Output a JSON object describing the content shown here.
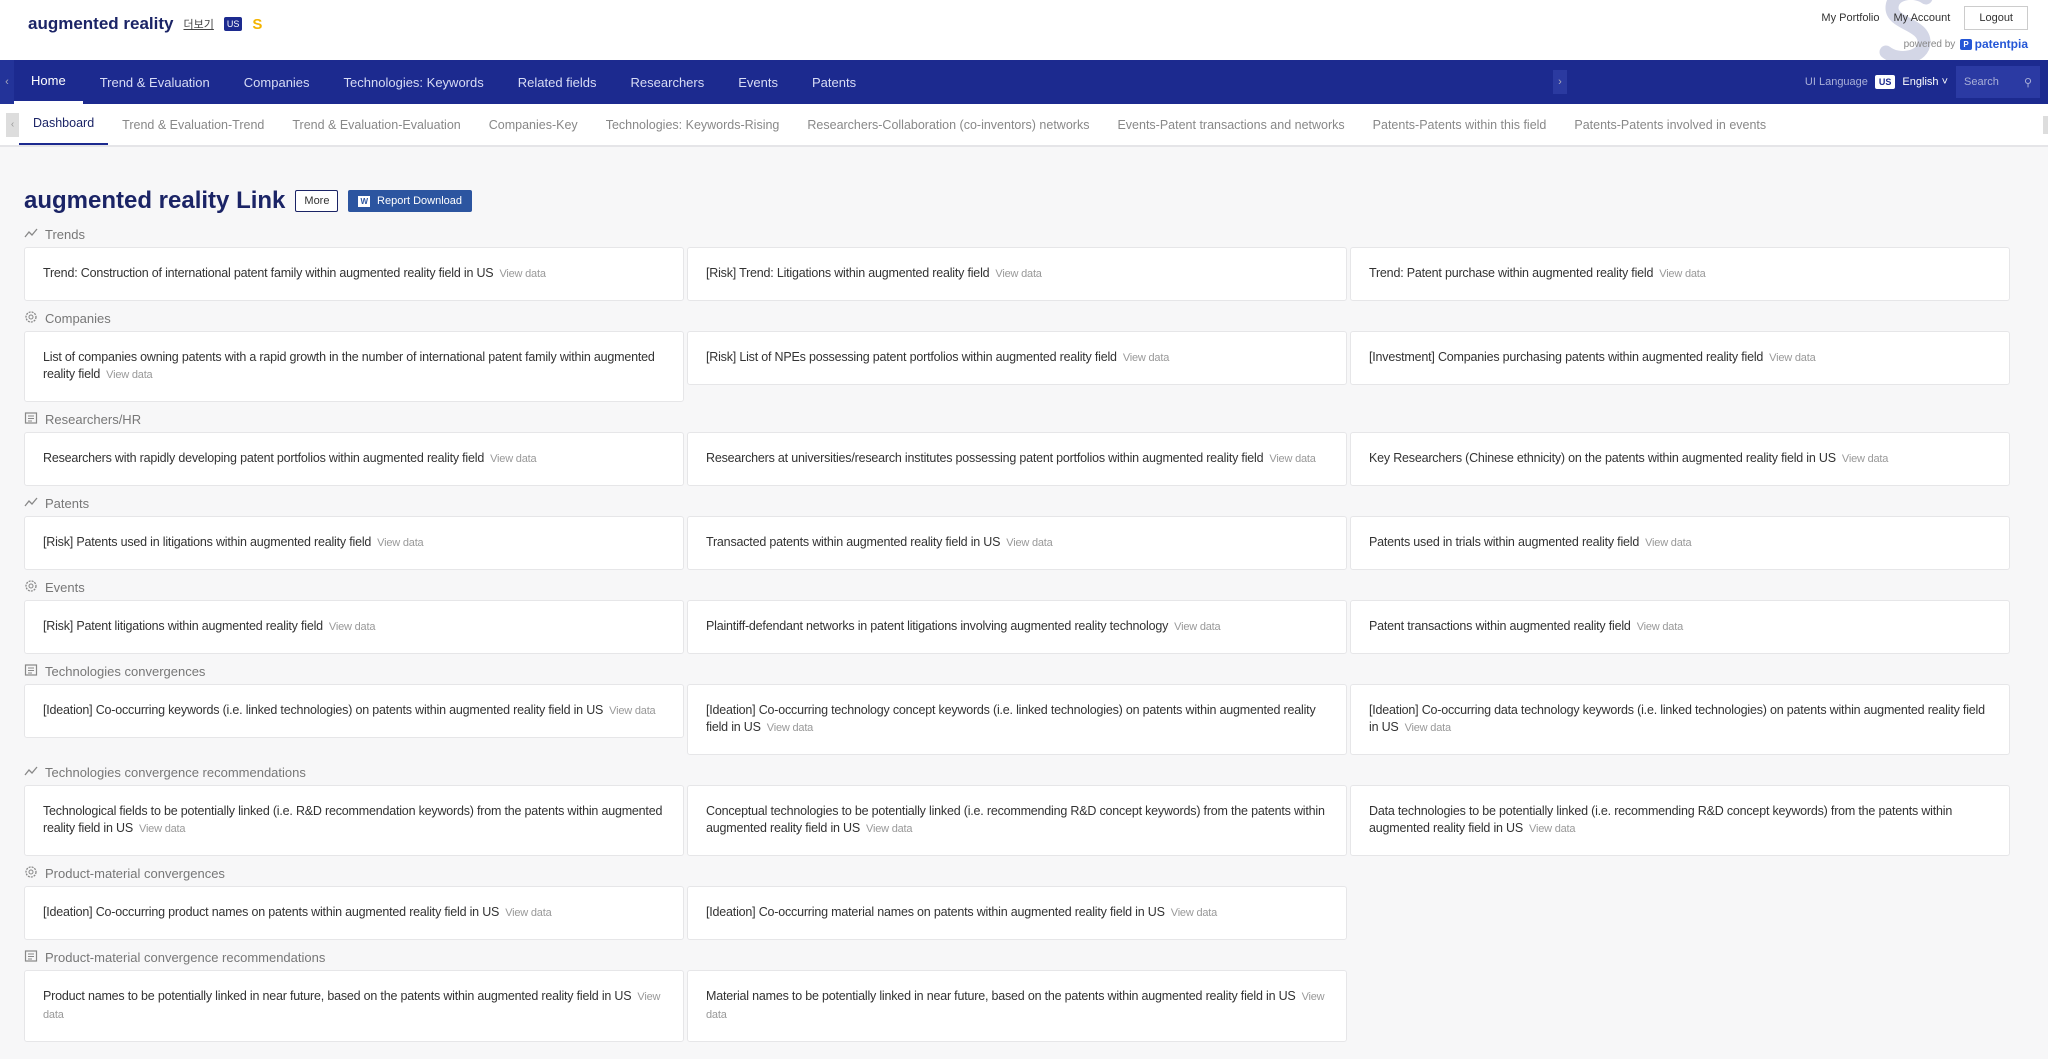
{
  "header": {
    "title": "augmented reality",
    "more_korean": "더보기",
    "country": "US",
    "s_badge": "S",
    "my_portfolio": "My Portfolio",
    "my_account": "My Account",
    "logout": "Logout",
    "powered_by": "powered by",
    "brand": "patentpia",
    "brand_icon": "P"
  },
  "nav": {
    "items": [
      "Home",
      "Trend & Evaluation",
      "Companies",
      "Technologies: Keywords",
      "Related fields",
      "Researchers",
      "Events",
      "Patents"
    ],
    "ui_language_label": "UI Language",
    "lang_country": "US",
    "language": "English",
    "search_placeholder": "Search"
  },
  "subnav": {
    "items": [
      "Dashboard",
      "Trend & Evaluation-Trend",
      "Trend & Evaluation-Evaluation",
      "Companies-Key",
      "Technologies: Keywords-Rising",
      "Researchers-Collaboration (co-inventors) networks",
      "Events-Patent transactions and networks",
      "Patents-Patents within this field",
      "Patents-Patents involved in events"
    ]
  },
  "page": {
    "title": "augmented reality Link",
    "more": "More",
    "report_download": "Report Download",
    "view_data": "View data"
  },
  "colors": {
    "nav_bg": "#1c2a8f",
    "title": "#1b2466",
    "report_button": "#2c55a0",
    "s_badge": "#f4b400"
  },
  "sections": [
    {
      "title": "Trends",
      "icon": "trend-line-icon",
      "cards": [
        "Trend: Construction of international patent family within augmented reality field in US",
        "[Risk] Trend: Litigations within augmented reality field",
        "Trend: Patent purchase within augmented reality field"
      ]
    },
    {
      "title": "Companies",
      "icon": "gear-icon",
      "cards": [
        "List of companies owning patents with a rapid growth in the number of international patent family within augmented reality field",
        "[Risk] List of NPEs possessing patent portfolios within augmented reality field",
        "[Investment] Companies purchasing patents within augmented reality field"
      ]
    },
    {
      "title": "Researchers/HR",
      "icon": "grid-box-icon",
      "cards": [
        "Researchers with rapidly developing patent portfolios within augmented reality field",
        "Researchers at universities/research institutes possessing patent portfolios within augmented reality field",
        "Key Researchers (Chinese ethnicity) on the patents within augmented reality field in US"
      ]
    },
    {
      "title": "Patents",
      "icon": "trend-line-icon",
      "cards": [
        "[Risk] Patents used in litigations within augmented reality field",
        "Transacted patents within augmented reality field in US",
        "Patents used in trials within augmented reality field"
      ]
    },
    {
      "title": "Events",
      "icon": "gear-icon",
      "cards": [
        "[Risk] Patent litigations within augmented reality field",
        "Plaintiff-defendant networks in patent litigations involving augmented reality technology",
        "Patent transactions within augmented reality field"
      ]
    },
    {
      "title": "Technologies convergences",
      "icon": "grid-box-icon",
      "cards": [
        "[Ideation] Co-occurring keywords (i.e. linked technologies) on patents within augmented reality field in US",
        "[Ideation] Co-occurring technology concept keywords (i.e. linked technologies) on patents within augmented reality field in US",
        "[Ideation] Co-occurring data technology keywords (i.e. linked technologies) on patents within augmented reality field in US"
      ]
    },
    {
      "title": "Technologies convergence recommendations",
      "icon": "trend-line-icon",
      "cards": [
        "Technological fields to be potentially linked (i.e. R&D recommendation keywords) from the patents within augmented reality field in US",
        "Conceptual technologies to be potentially linked (i.e. recommending R&D concept keywords) from the patents within augmented reality field in US",
        "Data technologies to be potentially linked (i.e. recommending R&D concept keywords) from the patents within augmented reality field in US"
      ]
    },
    {
      "title": "Product-material convergences",
      "icon": "gear-icon",
      "cards": [
        "[Ideation] Co-occurring product names on patents within augmented reality field in US",
        "[Ideation] Co-occurring material names on patents within augmented reality field in US"
      ]
    },
    {
      "title": "Product-material convergence recommendations",
      "icon": "grid-box-icon",
      "cards": [
        "Product names to be potentially linked in near future, based on the patents within augmented reality field in US",
        "Material names to be potentially linked in near future, based on the patents within augmented reality field in US"
      ]
    }
  ]
}
